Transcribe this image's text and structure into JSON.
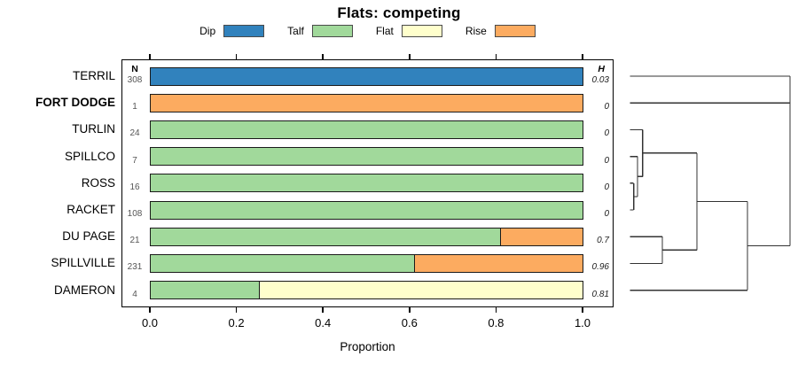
{
  "title": "Flats: competing",
  "chart_data": {
    "type": "bar",
    "orientation": "horizontal",
    "stacked": true,
    "title": "Flats: competing",
    "xlabel": "Proportion",
    "xlim": [
      0,
      1
    ],
    "x_tick_labels": [
      "0.0",
      "0.2",
      "0.4",
      "0.6",
      "0.8",
      "1.0"
    ],
    "grid": false,
    "legend_position": "top",
    "categories": [
      "TERRIL",
      "FORT DODGE",
      "TURLIN",
      "SPILLCO",
      "ROSS",
      "RACKET",
      "DU PAGE",
      "SPILLVILLE",
      "DAMERON"
    ],
    "emphasized_category": "FORT DODGE",
    "n_column": {
      "header": "N",
      "values": [
        "308",
        "1",
        "24",
        "7",
        "16",
        "108",
        "21",
        "231",
        "4"
      ]
    },
    "h_column": {
      "header": "H",
      "values": [
        "0.03",
        "0",
        "0",
        "0",
        "0",
        "0",
        "0.7",
        "0.96",
        "0.81"
      ]
    },
    "series": [
      {
        "name": "Dip",
        "color": "#3182BD",
        "values": [
          1,
          0,
          0,
          0,
          0,
          0,
          0,
          0,
          0
        ]
      },
      {
        "name": "Talf",
        "color": "#A1D99B",
        "values": [
          0,
          0,
          1,
          1,
          1,
          1,
          0.81,
          0.61,
          0.25
        ]
      },
      {
        "name": "Flat",
        "color": "#FFFFCC",
        "values": [
          0,
          0,
          0,
          0,
          0,
          0,
          0,
          0,
          0.75
        ]
      },
      {
        "name": "Rise",
        "color": "#FCAB60",
        "values": [
          0,
          1,
          0,
          0,
          0,
          0,
          0.19,
          0.39,
          0
        ]
      }
    ],
    "dendrogram": {
      "leaf_side": "left",
      "merges": [
        {
          "id": "A",
          "children": [
            "ROSS",
            "RACKET"
          ],
          "height": 0.023
        },
        {
          "id": "B",
          "children": [
            "SPILLCO",
            "A"
          ],
          "height": 0.047
        },
        {
          "id": "C",
          "children": [
            "TURLIN",
            "B"
          ],
          "height": 0.079
        },
        {
          "id": "E",
          "children": [
            "DU PAGE",
            "SPILLVILLE"
          ],
          "height": 0.202
        },
        {
          "id": "D",
          "children": [
            "C",
            "E"
          ],
          "height": 0.418
        },
        {
          "id": "F",
          "children": [
            "D",
            "DAMERON"
          ],
          "height": 0.734
        },
        {
          "id": "ROOT",
          "children": [
            "TERRIL",
            "FORT DODGE",
            "F"
          ],
          "height": 1.0
        }
      ]
    }
  }
}
